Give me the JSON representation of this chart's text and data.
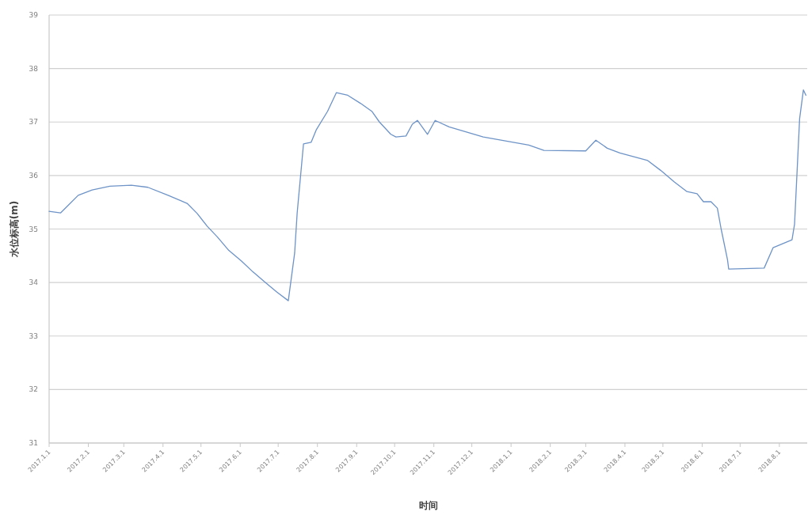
{
  "chart_data": {
    "type": "line",
    "xlabel": "时间",
    "ylabel": "水位标高(m)",
    "x": [
      "2017-01-01",
      "2017-01-10",
      "2017-01-24",
      "2017-02-04",
      "2017-02-18",
      "2017-03-07",
      "2017-03-20",
      "2017-04-05",
      "2017-04-20",
      "2017-04-28",
      "2017-05-06",
      "2017-05-14",
      "2017-05-23",
      "2017-06-02",
      "2017-06-11",
      "2017-06-21",
      "2017-06-30",
      "2017-07-09",
      "2017-07-14",
      "2017-07-16",
      "2017-07-21",
      "2017-07-27",
      "2017-07-31",
      "2017-08-09",
      "2017-08-16",
      "2017-08-25",
      "2017-09-04",
      "2017-09-13",
      "2017-09-19",
      "2017-09-28",
      "2017-10-02",
      "2017-10-10",
      "2017-10-15",
      "2017-10-19",
      "2017-10-27",
      "2017-11-02",
      "2017-11-13",
      "2017-12-10",
      "2018-01-15",
      "2018-01-27",
      "2018-03-01",
      "2018-03-09",
      "2018-03-18",
      "2018-03-28",
      "2018-04-19",
      "2018-04-29",
      "2018-05-10",
      "2018-05-20",
      "2018-05-28",
      "2018-06-02",
      "2018-06-08",
      "2018-06-13",
      "2018-06-16",
      "2018-06-21",
      "2018-06-22",
      "2018-07-20",
      "2018-07-27",
      "2018-08-11",
      "2018-08-13",
      "2018-08-17",
      "2018-08-20",
      "2018-08-22"
    ],
    "series": [
      {
        "color": "#6d93c7",
        "values": [
          35.33,
          35.3,
          35.63,
          35.73,
          35.8,
          35.82,
          35.78,
          35.63,
          35.48,
          35.29,
          35.05,
          34.85,
          34.6,
          34.4,
          34.2,
          34.0,
          33.82,
          33.66,
          34.55,
          35.3,
          36.59,
          36.62,
          36.85,
          37.2,
          37.55,
          37.5,
          37.35,
          37.2,
          37.0,
          36.77,
          36.72,
          36.74,
          36.96,
          37.03,
          36.77,
          37.03,
          36.91,
          36.72,
          36.57,
          36.47,
          36.46,
          36.66,
          36.51,
          36.42,
          36.28,
          36.1,
          35.88,
          35.7,
          35.66,
          35.51,
          35.51,
          35.39,
          35.0,
          34.43,
          34.25,
          34.27,
          34.65,
          34.8,
          35.09,
          37.06,
          37.6,
          37.5
        ]
      }
    ],
    "xlim": [
      "2017-01-01",
      "2018-08-23"
    ],
    "ylim": [
      31,
      39
    ],
    "yticks": [
      31,
      32,
      33,
      34,
      35,
      36,
      37,
      38,
      39
    ],
    "xticks": [
      {
        "value": "2017-01-01",
        "label": "2017.1.1"
      },
      {
        "value": "2017-02-01",
        "label": "2017.2.1"
      },
      {
        "value": "2017-03-01",
        "label": "2017.3.1"
      },
      {
        "value": "2017-04-01",
        "label": "2017.4.1"
      },
      {
        "value": "2017-05-01",
        "label": "2017.5.1"
      },
      {
        "value": "2017-06-01",
        "label": "2017.6.1"
      },
      {
        "value": "2017-07-01",
        "label": "2017.7.1"
      },
      {
        "value": "2017-08-01",
        "label": "2017.8.1"
      },
      {
        "value": "2017-09-01",
        "label": "2017.9.1"
      },
      {
        "value": "2017-10-01",
        "label": "2017.10.1"
      },
      {
        "value": "2017-11-01",
        "label": "2017.11.1"
      },
      {
        "value": "2017-12-01",
        "label": "2017.12.1"
      },
      {
        "value": "2018-01-01",
        "label": "2018.1.1"
      },
      {
        "value": "2018-02-01",
        "label": "2018.2.1"
      },
      {
        "value": "2018-03-01",
        "label": "2018.3.1"
      },
      {
        "value": "2018-04-01",
        "label": "2018.4.1"
      },
      {
        "value": "2018-05-01",
        "label": "2018.5.1"
      },
      {
        "value": "2018-06-01",
        "label": "2018.6.1"
      },
      {
        "value": "2018-07-01",
        "label": "2018.7.1"
      },
      {
        "value": "2018-08-01",
        "label": "2018.8.1"
      }
    ],
    "grid": "y",
    "line_style": "solid"
  }
}
